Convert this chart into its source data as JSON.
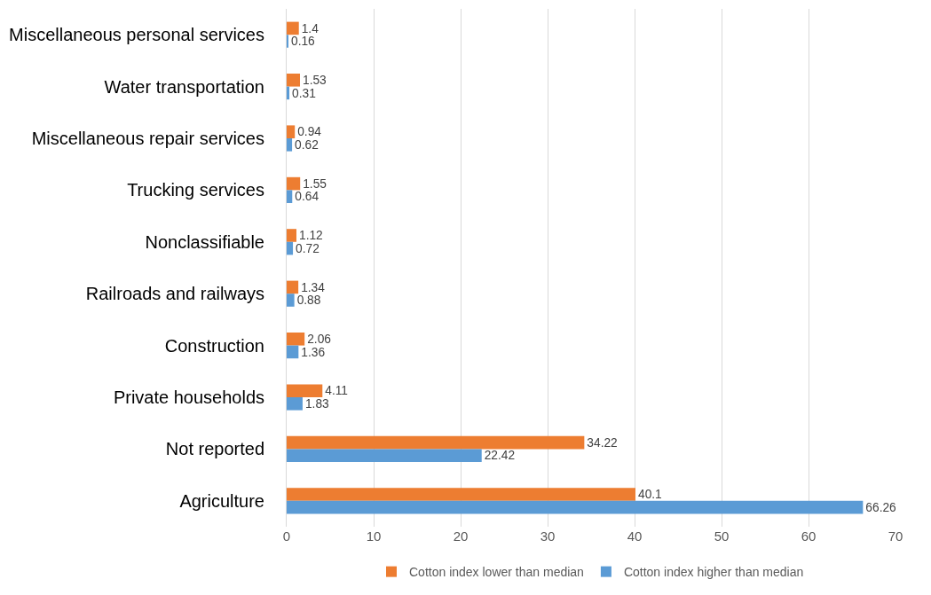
{
  "chart_data": {
    "type": "bar",
    "orientation": "horizontal",
    "categories": [
      "Miscellaneous personal services",
      "Water transportation",
      "Miscellaneous repair services",
      "Trucking services",
      "Nonclassifiable",
      "Railroads and railways",
      "Construction",
      "Private households",
      "Not reported",
      "Agriculture"
    ],
    "series": [
      {
        "name": "Cotton index lower than median",
        "color": "#ed7d31",
        "values": [
          1.4,
          1.53,
          0.94,
          1.55,
          1.12,
          1.34,
          2.06,
          4.11,
          34.22,
          40.1
        ]
      },
      {
        "name": "Cotton index higher than median",
        "color": "#5b9bd5",
        "values": [
          0.16,
          0.31,
          0.62,
          0.64,
          0.72,
          0.88,
          1.36,
          1.83,
          22.42,
          66.26
        ]
      }
    ],
    "xlim": [
      0,
      70
    ],
    "xticks": [
      0,
      10,
      20,
      30,
      40,
      50,
      60,
      70
    ],
    "grid": "x",
    "legend": "bottom",
    "data_labels": true
  }
}
